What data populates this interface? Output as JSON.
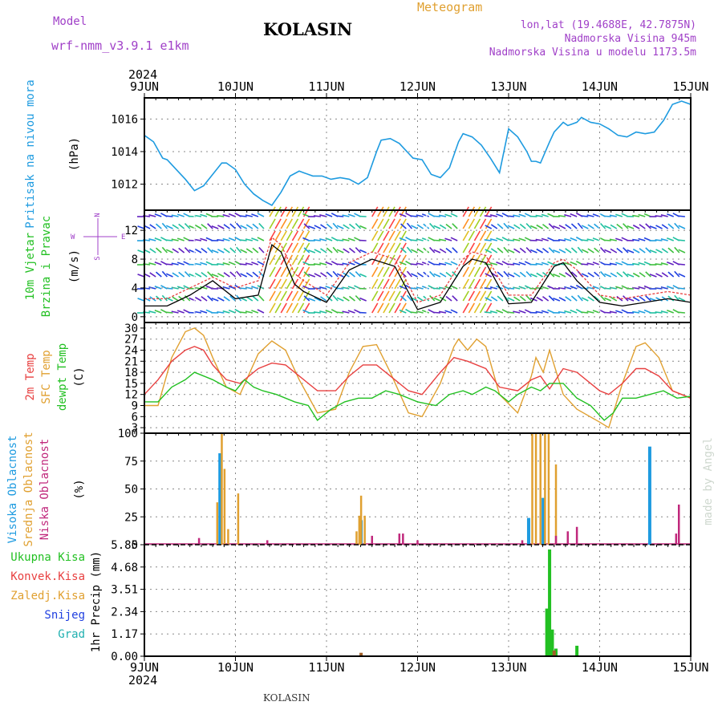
{
  "header": {
    "model_label": "Model",
    "model_name": "wrf-nmm_v3.9.1 e1km",
    "station": "KOLASIN",
    "meteogram_label": "Meteogram",
    "lonlat": "lon,lat (19.4688E, 42.7875N)",
    "altitude": "Nadmorska Visina 945m",
    "model_altitude": "Nadmorska Visina u modelu 1173.5m",
    "year_top": "2024",
    "year_bottom": "2024",
    "footer_station": "KOLASIN",
    "credit": "made by Angel"
  },
  "colors": {
    "cyan": "#1e9be0",
    "green": "#22c022",
    "orange": "#e0a030",
    "red": "#e84040",
    "magenta": "#c0287c",
    "purple": "#a040c8",
    "blue": "#2040e0",
    "teal": "#20b0b0",
    "brown": "#a06028"
  },
  "chart_data": [
    {
      "type": "line",
      "panel": "pressure",
      "ylabel_rotated": "Pritisak na nivou mora",
      "unit": "(hPa)",
      "x_tick_labels": [
        "9JUN",
        "10JUN",
        "11JUN",
        "12JUN",
        "13JUN",
        "14JUN",
        "15JUN"
      ],
      "yticks": [
        1012,
        1014,
        1016
      ],
      "ylim": [
        1010.4,
        1017.3
      ],
      "grid": true,
      "series": [
        {
          "color": "cyan",
          "x": [
            0,
            0.1,
            0.2,
            0.25,
            0.35,
            0.45,
            0.55,
            0.65,
            0.75,
            0.85,
            0.9,
            1.0,
            1.1,
            1.2,
            1.3,
            1.4,
            1.5,
            1.6,
            1.7,
            1.75,
            1.85,
            1.95,
            2.05,
            2.15,
            2.25,
            2.35,
            2.45,
            2.55,
            2.6,
            2.7,
            2.8,
            2.85,
            2.95,
            3.05,
            3.15,
            3.25,
            3.35,
            3.45,
            3.5,
            3.6,
            3.7,
            3.8,
            3.9,
            4.0,
            4.1,
            4.2,
            4.25,
            4.3,
            4.35,
            4.45,
            4.5,
            4.55,
            4.6,
            4.65,
            4.7,
            4.75,
            4.8,
            4.9,
            5.0,
            5.1,
            5.2,
            5.3,
            5.4,
            5.5,
            5.6,
            5.7,
            5.8,
            5.9,
            6.0
          ],
          "y": [
            1015.0,
            1014.6,
            1013.6,
            1013.5,
            1012.9,
            1012.3,
            1011.6,
            1011.9,
            1012.6,
            1013.3,
            1013.3,
            1012.9,
            1012.0,
            1011.4,
            1011.0,
            1010.7,
            1011.5,
            1012.5,
            1012.8,
            1012.7,
            1012.5,
            1012.5,
            1012.3,
            1012.4,
            1012.3,
            1012.0,
            1012.4,
            1014.0,
            1014.7,
            1014.8,
            1014.5,
            1014.2,
            1013.6,
            1013.5,
            1012.6,
            1012.4,
            1013.0,
            1014.6,
            1015.1,
            1014.9,
            1014.4,
            1013.6,
            1012.7,
            1015.4,
            1014.9,
            1014.0,
            1013.4,
            1013.4,
            1013.3,
            1014.6,
            1015.2,
            1015.5,
            1015.8,
            1015.6,
            1015.7,
            1015.8,
            1016.1,
            1015.8,
            1015.7,
            1015.4,
            1015.0,
            1014.9,
            1015.2,
            1015.1,
            1015.2,
            1015.9,
            1016.9,
            1017.1,
            1016.9
          ]
        }
      ]
    },
    {
      "type": "line",
      "panel": "wind",
      "ylabel_rotated": [
        "10m Vjetar",
        "Brzina i Pravac"
      ],
      "unit": "(m/s)",
      "compass": {
        "n": "N",
        "w": "W",
        "e": "E",
        "s": "S"
      },
      "yticks": [
        0,
        4,
        8,
        12
      ],
      "ylim": [
        -0.8,
        14.8
      ],
      "grid": true,
      "series": [
        {
          "name_hidden": true,
          "color": "black",
          "x": [
            0,
            0.25,
            0.5,
            0.75,
            1.0,
            1.25,
            1.4,
            1.5,
            1.65,
            1.75,
            2.0,
            2.25,
            2.5,
            2.75,
            3.0,
            3.25,
            3.5,
            3.6,
            3.75,
            4.0,
            4.25,
            4.5,
            4.6,
            4.75,
            5.0,
            5.25,
            5.5,
            5.75,
            6.0
          ],
          "y": [
            1.5,
            1.5,
            3,
            5,
            2.5,
            3,
            10,
            9,
            4.5,
            3.5,
            2,
            6.5,
            8,
            7,
            1,
            2,
            7,
            8,
            7.5,
            1.8,
            2,
            7,
            7.5,
            5,
            2,
            1.5,
            2,
            2.5,
            2
          ]
        },
        {
          "name_hidden": true,
          "color": "red",
          "x": [
            0,
            0.25,
            0.5,
            0.75,
            1.0,
            1.25,
            1.4,
            1.5,
            1.65,
            1.75,
            2.0,
            2.25,
            2.5,
            2.75,
            3.0,
            3.25,
            3.5,
            3.6,
            3.75,
            4.0,
            4.25,
            4.5,
            4.6,
            4.75,
            5.0,
            5.25,
            5.5,
            5.75,
            6.0
          ],
          "y": [
            2.5,
            2.5,
            4,
            5.5,
            4,
            5,
            11,
            10,
            6,
            5,
            3,
            7.5,
            9,
            8,
            2,
            3,
            8,
            9,
            8.5,
            3,
            3,
            7.5,
            8,
            6.5,
            3,
            2.5,
            3,
            3.5,
            3
          ]
        }
      ],
      "wind_hatch_bands_day": [
        [
          1.35,
          1.75
        ],
        [
          2.45,
          2.85
        ],
        [
          3.45,
          3.75
        ]
      ]
    },
    {
      "type": "line",
      "panel": "temperature",
      "ylabel_rotated": [
        "2m Temp",
        "SFC Temp",
        "dewpt Temp"
      ],
      "unit": "(C)",
      "yticks": [
        3,
        6,
        9,
        12,
        15,
        18,
        21,
        24,
        27,
        30
      ],
      "ylim": [
        1.5,
        31.5
      ],
      "grid": true,
      "series": [
        {
          "color": "orange",
          "x": [
            0,
            0.15,
            0.3,
            0.45,
            0.55,
            0.65,
            0.75,
            0.9,
            1.05,
            1.25,
            1.4,
            1.55,
            1.7,
            1.9,
            2.1,
            2.25,
            2.4,
            2.55,
            2.7,
            2.9,
            3.05,
            3.25,
            3.4,
            3.45,
            3.55,
            3.65,
            3.75,
            3.9,
            4.1,
            4.25,
            4.3,
            4.38,
            4.45,
            4.5,
            4.6,
            4.75,
            5.0,
            5.1,
            5.25,
            5.4,
            5.5,
            5.65,
            5.8,
            6.0
          ],
          "y": [
            9,
            9,
            22,
            29,
            30,
            28,
            22,
            14,
            12,
            23,
            26.5,
            24,
            16,
            7,
            8,
            18,
            25,
            25.5,
            18,
            7,
            6,
            15,
            25,
            27,
            24,
            27,
            25,
            12,
            7,
            17,
            22,
            18,
            24,
            20,
            12,
            8,
            4.5,
            3,
            15,
            25,
            26,
            22,
            13,
            11
          ]
        },
        {
          "color": "red",
          "x": [
            0,
            0.15,
            0.3,
            0.45,
            0.55,
            0.65,
            0.75,
            0.9,
            1.05,
            1.25,
            1.4,
            1.55,
            1.7,
            1.9,
            2.1,
            2.25,
            2.4,
            2.55,
            2.7,
            2.9,
            3.05,
            3.25,
            3.4,
            3.55,
            3.75,
            3.9,
            4.1,
            4.25,
            4.35,
            4.45,
            4.6,
            4.75,
            5.0,
            5.1,
            5.25,
            5.4,
            5.5,
            5.65,
            5.8,
            6.0
          ],
          "y": [
            12,
            16,
            21,
            24,
            25,
            24,
            20,
            16,
            15,
            19,
            20.5,
            20,
            17,
            13,
            13,
            17,
            20,
            20,
            17,
            13,
            12,
            18,
            22,
            21,
            19,
            14,
            13,
            16,
            17,
            13.5,
            19,
            18,
            13,
            12,
            15,
            19,
            19,
            17,
            13,
            11
          ]
        },
        {
          "color": "green",
          "x": [
            0,
            0.15,
            0.3,
            0.45,
            0.55,
            0.65,
            0.75,
            0.9,
            1.0,
            1.1,
            1.2,
            1.3,
            1.45,
            1.65,
            1.8,
            1.9,
            2.05,
            2.2,
            2.35,
            2.5,
            2.65,
            2.8,
            3.0,
            3.2,
            3.35,
            3.5,
            3.6,
            3.75,
            3.85,
            4.0,
            4.1,
            4.25,
            4.35,
            4.45,
            4.6,
            4.75,
            4.9,
            5.05,
            5.15,
            5.25,
            5.4,
            5.55,
            5.7,
            5.85,
            6.0
          ],
          "y": [
            10,
            10,
            14,
            16,
            18,
            17,
            16,
            14,
            13,
            16,
            14,
            13,
            12,
            10,
            9,
            5,
            8,
            10,
            11,
            11,
            13,
            12,
            10,
            9,
            12,
            13,
            12,
            14,
            13,
            10,
            12,
            14,
            13,
            15,
            15,
            11,
            9,
            5,
            7,
            11,
            11,
            12,
            13,
            11,
            11.5
          ]
        }
      ]
    },
    {
      "type": "bar",
      "panel": "cloud",
      "ylabel_rotated": [
        "Visoka Oblacnost",
        "Srednja Oblacnost",
        "Niska Oblacnost"
      ],
      "unit": "(%)",
      "yticks": [
        0,
        25,
        50,
        75,
        100
      ],
      "ylim": [
        0,
        100
      ],
      "grid": true,
      "series": [
        {
          "color": "cyan",
          "bars": [
            [
              0.83,
              82
            ],
            [
              2.38,
              22
            ],
            [
              4.22,
              24
            ],
            [
              4.38,
              42
            ],
            [
              5.55,
              88
            ]
          ]
        },
        {
          "color": "orange",
          "bars": [
            [
              0.8,
              38
            ],
            [
              0.85,
              100
            ],
            [
              0.88,
              68
            ],
            [
              0.92,
              14
            ],
            [
              1.03,
              46
            ],
            [
              2.33,
              12
            ],
            [
              2.36,
              26
            ],
            [
              2.38,
              44
            ],
            [
              2.42,
              26
            ],
            [
              4.26,
              100
            ],
            [
              4.3,
              100
            ],
            [
              4.35,
              100
            ],
            [
              4.4,
              100
            ],
            [
              4.44,
              100
            ],
            [
              4.52,
              72
            ]
          ]
        },
        {
          "color": "magenta",
          "bars": [
            [
              0.6,
              6
            ],
            [
              1.35,
              4
            ],
            [
              2.5,
              8
            ],
            [
              2.8,
              10
            ],
            [
              2.84,
              10
            ],
            [
              3.0,
              4
            ],
            [
              4.15,
              4
            ],
            [
              4.52,
              8
            ],
            [
              4.65,
              12
            ],
            [
              4.75,
              16
            ],
            [
              5.84,
              10
            ],
            [
              5.87,
              36
            ]
          ]
        }
      ]
    },
    {
      "type": "bar",
      "panel": "precip",
      "ylabel_rotated": "1hr Precip (mm)",
      "legend": [
        "Ukupna Kisa",
        "Konvek.Kisa",
        "Zaledj.Kisa",
        "Snijeg",
        "Grad"
      ],
      "yticks": [
        0,
        1.17,
        2.34,
        3.51,
        4.68,
        5.85
      ],
      "ylim": [
        0,
        5.85
      ],
      "grid": true,
      "series": [
        {
          "color": "green",
          "bars": [
            [
              4.42,
              2.5
            ],
            [
              4.45,
              5.6
            ],
            [
              4.48,
              1.4
            ],
            [
              4.52,
              0.4
            ],
            [
              4.75,
              0.55
            ]
          ]
        },
        {
          "color": "brown",
          "bars": [
            [
              2.38,
              0.18
            ],
            [
              4.5,
              0.3
            ]
          ]
        }
      ]
    }
  ]
}
